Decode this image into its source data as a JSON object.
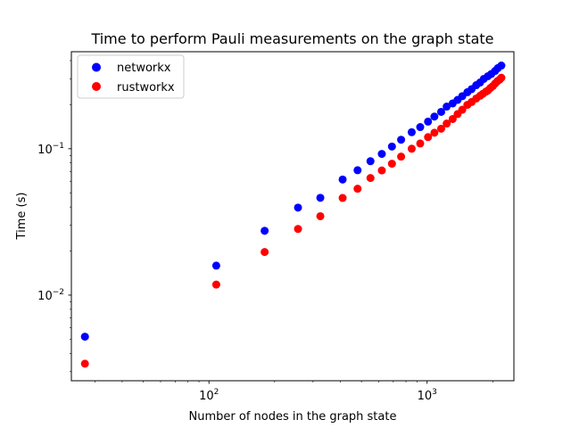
{
  "chart_data": {
    "type": "scatter",
    "title": "Time to perform Pauli measurements on the graph state",
    "xlabel": "Number of nodes in the graph state",
    "ylabel": "Time (s)",
    "xscale": "log",
    "yscale": "log",
    "xlim": [
      23.4,
      2500
    ],
    "ylim": [
      0.0026,
      0.46
    ],
    "grid": false,
    "legend_position": "upper-left",
    "x_ticks": [
      {
        "value": 100,
        "base": "10",
        "exp": "2"
      },
      {
        "value": 1000,
        "base": "10",
        "exp": "3"
      }
    ],
    "y_ticks": [
      {
        "value": 0.01,
        "base": "10",
        "exp": "−2"
      },
      {
        "value": 0.1,
        "base": "10",
        "exp": "−1"
      }
    ],
    "series": [
      {
        "name": "networkx",
        "color": "#0000ff",
        "x": [
          27,
          108,
          180,
          256,
          324,
          410,
          480,
          550,
          620,
          690,
          760,
          850,
          930,
          1010,
          1080,
          1160,
          1230,
          1310,
          1380,
          1450,
          1530,
          1600,
          1680,
          1750,
          1820,
          1900,
          1970,
          2050,
          2110,
          2190
        ],
        "y": [
          0.0052,
          0.0159,
          0.0275,
          0.0396,
          0.0462,
          0.0616,
          0.0713,
          0.0822,
          0.0922,
          0.1035,
          0.1152,
          0.1297,
          0.1405,
          0.1532,
          0.1658,
          0.1785,
          0.1941,
          0.2041,
          0.2156,
          0.2287,
          0.2433,
          0.2553,
          0.2716,
          0.2835,
          0.3001,
          0.313,
          0.3242,
          0.34,
          0.3552,
          0.3698
        ]
      },
      {
        "name": "rustworkx",
        "color": "#ff0000",
        "x": [
          27,
          108,
          180,
          256,
          324,
          410,
          480,
          550,
          620,
          690,
          760,
          850,
          930,
          1010,
          1080,
          1160,
          1230,
          1310,
          1380,
          1450,
          1530,
          1600,
          1680,
          1750,
          1800,
          1860,
          1900,
          1950,
          2000,
          2050,
          2100,
          2150,
          2190
        ],
        "y": [
          0.0034,
          0.0118,
          0.0197,
          0.0283,
          0.0346,
          0.0461,
          0.0533,
          0.0631,
          0.0711,
          0.079,
          0.0883,
          0.1,
          0.1086,
          0.12,
          0.1286,
          0.137,
          0.1486,
          0.1596,
          0.1726,
          0.1848,
          0.1994,
          0.2085,
          0.2204,
          0.23,
          0.237,
          0.2452,
          0.25,
          0.26,
          0.2677,
          0.2787,
          0.2895,
          0.2965,
          0.3055
        ]
      }
    ]
  }
}
